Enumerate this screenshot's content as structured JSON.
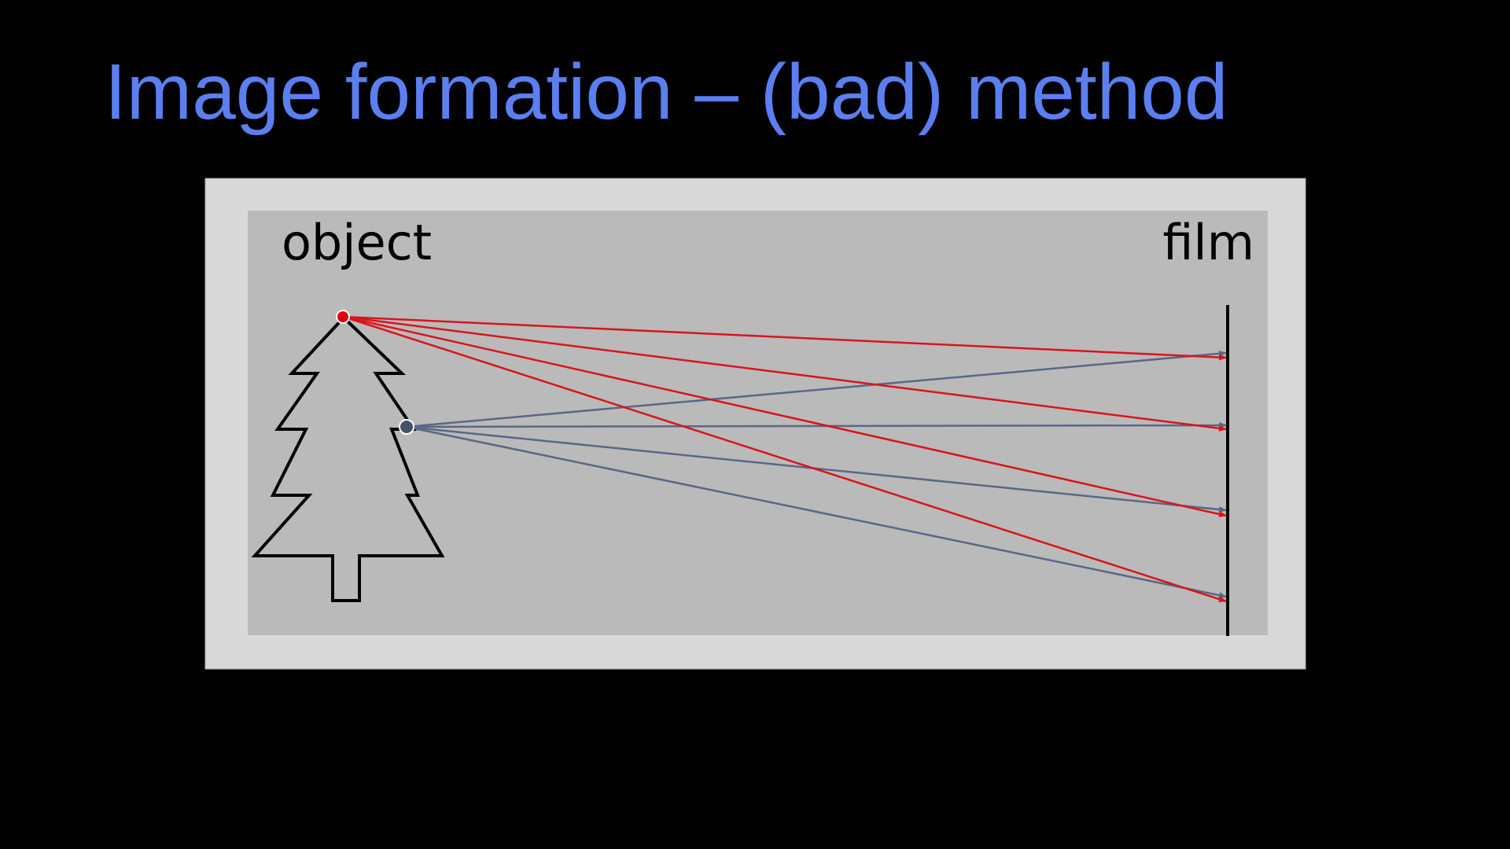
{
  "slide": {
    "title": "Image formation – (bad) method"
  },
  "diagram": {
    "object_label": "object",
    "film_label": "film",
    "colors": {
      "background": "#000000",
      "title": "#5b7ff0",
      "outer_panel": "#d8d8d8",
      "inner_panel": "#bababa",
      "red_point": "#e0000f",
      "blue_point": "#44546a",
      "red_rays": "#d9141e",
      "blue_rays": "#5a6785",
      "tree_outline": "#000000",
      "film": "#000000"
    },
    "icons": {
      "tree": "tree-outline-icon"
    }
  }
}
